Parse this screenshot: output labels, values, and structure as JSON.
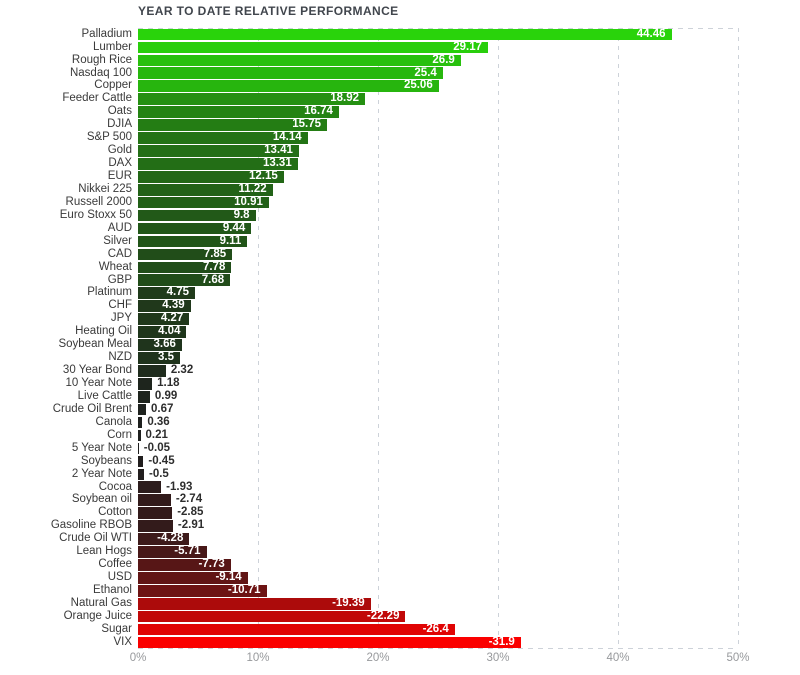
{
  "title": "YEAR TO DATE RELATIVE PERFORMANCE",
  "chart_data": {
    "type": "bar",
    "orientation": "horizontal",
    "title": "YEAR TO DATE RELATIVE PERFORMANCE",
    "xlabel": "",
    "ylabel": "",
    "x_ticks": [
      "0%",
      "10%",
      "20%",
      "30%",
      "40%",
      "50%"
    ],
    "x_axis_max_percent": 50,
    "grid": "dashed-vertical",
    "legend": "none",
    "categories": [
      "Palladium",
      "Lumber",
      "Rough Rice",
      "Nasdaq 100",
      "Copper",
      "Feeder Cattle",
      "Oats",
      "DJIA",
      "S&P 500",
      "Gold",
      "DAX",
      "EUR",
      "Nikkei 225",
      "Russell 2000",
      "Euro Stoxx 50",
      "AUD",
      "Silver",
      "CAD",
      "Wheat",
      "GBP",
      "Platinum",
      "CHF",
      "JPY",
      "Heating Oil",
      "Soybean Meal",
      "NZD",
      "30 Year Bond",
      "10 Year Note",
      "Live Cattle",
      "Crude Oil Brent",
      "Canola",
      "Corn",
      "5 Year Note",
      "Soybeans",
      "2 Year Note",
      "Cocoa",
      "Soybean oil",
      "Cotton",
      "Gasoline RBOB",
      "Crude Oil WTI",
      "Lean Hogs",
      "Coffee",
      "USD",
      "Ethanol",
      "Natural Gas",
      "Orange Juice",
      "Sugar",
      "VIX"
    ],
    "values": [
      44.46,
      29.17,
      26.9,
      25.4,
      25.06,
      18.92,
      16.74,
      15.75,
      14.14,
      13.41,
      13.31,
      12.15,
      11.22,
      10.91,
      9.8,
      9.44,
      9.11,
      7.85,
      7.78,
      7.68,
      4.75,
      4.39,
      4.27,
      4.04,
      3.66,
      3.5,
      2.32,
      1.18,
      0.99,
      0.67,
      0.36,
      0.21,
      -0.05,
      -0.45,
      -0.5,
      -1.93,
      -2.74,
      -2.85,
      -2.91,
      -4.28,
      -5.71,
      -7.73,
      -9.14,
      -10.71,
      -19.39,
      -22.29,
      -26.4,
      -31.9
    ],
    "colors": {
      "positive_max": "#29D30B",
      "negative_max": "#FA0000",
      "near_zero": "#1E1E1E",
      "color_domain_abs": 30,
      "gridline": "#CDD2D9",
      "title_text": "#41464D",
      "category_text": "#3A3A3A",
      "tick_text": "#97999C",
      "value_inside_text": "#FFFFFF",
      "value_outside_text": "#2D2D2D",
      "background": "#FFFFFF"
    }
  }
}
